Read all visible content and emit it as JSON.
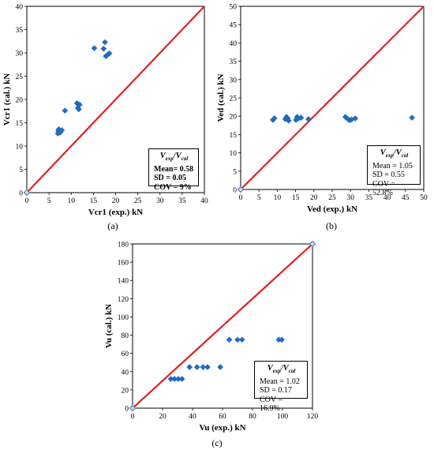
{
  "chart_data": [
    {
      "type": "scatter",
      "id": "a",
      "panel_label": "(a)",
      "xlabel": "Vcr1 (exp.) kN",
      "ylabel": "Vcr1 (cal.) kN",
      "xlim": [
        0,
        40
      ],
      "ylim": [
        0,
        40
      ],
      "xticks": [
        0,
        5,
        10,
        15,
        20,
        25,
        30,
        35,
        40
      ],
      "yticks": [
        0,
        5,
        10,
        15,
        20,
        25,
        30,
        35,
        40
      ],
      "grid": false,
      "series": [
        {
          "marker": "diamond",
          "color": "#1F6DC1",
          "points": [
            [
              7.0,
              12.7
            ],
            [
              7.3,
              13.0
            ],
            [
              7.1,
              13.3
            ],
            [
              7.5,
              12.9
            ],
            [
              7.2,
              13.6
            ],
            [
              7.6,
              13.2
            ],
            [
              7.9,
              13.4
            ],
            [
              8.6,
              17.6
            ],
            [
              11.3,
              19.2
            ],
            [
              11.5,
              18.2
            ],
            [
              11.7,
              17.9
            ],
            [
              11.9,
              18.9
            ],
            [
              15.2,
              31.0
            ],
            [
              17.3,
              30.9
            ],
            [
              17.6,
              32.3
            ],
            [
              17.8,
              29.3
            ],
            [
              18.2,
              29.6
            ],
            [
              18.6,
              29.9
            ]
          ]
        },
        {
          "marker": "diamond-open",
          "color": "#9DB9D8",
          "points": [
            [
              0,
              0
            ]
          ]
        }
      ],
      "reference_line": {
        "from": [
          0,
          0
        ],
        "to": [
          40,
          40
        ],
        "color": "#E02020"
      },
      "stats": {
        "title": "Vexp/Vcal",
        "lines": [
          "Mean= 0.58",
          "SD = 0.05",
          "COV = 9%"
        ],
        "bold": true
      }
    },
    {
      "type": "scatter",
      "id": "b",
      "panel_label": "(b)",
      "xlabel": "Ved (exp.) kN",
      "ylabel": "Ved (cal.) kN",
      "xlim": [
        0,
        50
      ],
      "ylim": [
        0,
        50
      ],
      "xticks": [
        0,
        5,
        10,
        15,
        20,
        25,
        30,
        35,
        40,
        45,
        50
      ],
      "yticks": [
        0,
        5,
        10,
        15,
        20,
        25,
        30,
        35,
        40,
        45,
        50
      ],
      "grid": false,
      "series": [
        {
          "marker": "diamond",
          "color": "#1F6DC1",
          "points": [
            [
              8.8,
              19.0
            ],
            [
              9.2,
              19.4
            ],
            [
              12.2,
              19.2
            ],
            [
              12.5,
              19.8
            ],
            [
              12.8,
              19.5
            ],
            [
              13.1,
              18.8
            ],
            [
              15.1,
              19.0
            ],
            [
              15.4,
              19.8
            ],
            [
              15.8,
              19.4
            ],
            [
              16.5,
              19.6
            ],
            [
              18.5,
              19.2
            ],
            [
              28.6,
              19.8
            ],
            [
              29.2,
              19.3
            ],
            [
              29.7,
              18.9
            ],
            [
              30.3,
              19.1
            ],
            [
              31.3,
              19.4
            ],
            [
              46.8,
              19.6
            ]
          ]
        },
        {
          "marker": "diamond-open",
          "color": "#9DB9D8",
          "points": [
            [
              0,
              0
            ]
          ]
        }
      ],
      "reference_line": {
        "from": [
          0,
          0
        ],
        "to": [
          50,
          50
        ],
        "color": "#E02020"
      },
      "stats": {
        "title": "Vexp/Vcal",
        "lines": [
          "Mean = 1.05",
          "SD = 0.55",
          "COV = 52.8%"
        ],
        "bold": false
      }
    },
    {
      "type": "scatter",
      "id": "c",
      "panel_label": "(c)",
      "xlabel": "Vu (exp.) kN",
      "ylabel": "Vu (cal.) kN",
      "xlim": [
        0,
        120
      ],
      "ylim": [
        0,
        180
      ],
      "xticks": [
        0,
        20,
        40,
        60,
        80,
        100,
        120
      ],
      "yticks": [
        0,
        20,
        40,
        60,
        80,
        100,
        120,
        140,
        160,
        180
      ],
      "grid": false,
      "series": [
        {
          "marker": "diamond",
          "color": "#1F6DC1",
          "points": [
            [
              25.5,
              32
            ],
            [
              28.0,
              32
            ],
            [
              30.5,
              32
            ],
            [
              33.0,
              32
            ],
            [
              38.0,
              45
            ],
            [
              43.0,
              45
            ],
            [
              47.0,
              45
            ],
            [
              50.0,
              45
            ],
            [
              58.5,
              45
            ],
            [
              64.5,
              75
            ],
            [
              70.0,
              75
            ],
            [
              73.0,
              75
            ],
            [
              97.5,
              75
            ],
            [
              99.5,
              75
            ]
          ]
        },
        {
          "marker": "diamond-open",
          "color": "#9DB9D8",
          "points": [
            [
              0,
              0
            ],
            [
              120,
              180
            ]
          ]
        }
      ],
      "reference_line": {
        "from": [
          0,
          0
        ],
        "to": [
          120,
          180
        ],
        "color": "#E02020"
      },
      "stats": {
        "title": "Vexp/Vcal",
        "lines": [
          "Mean = 1.02",
          "SD = 0.17",
          "COV = 16.9%"
        ],
        "bold": false
      }
    }
  ]
}
